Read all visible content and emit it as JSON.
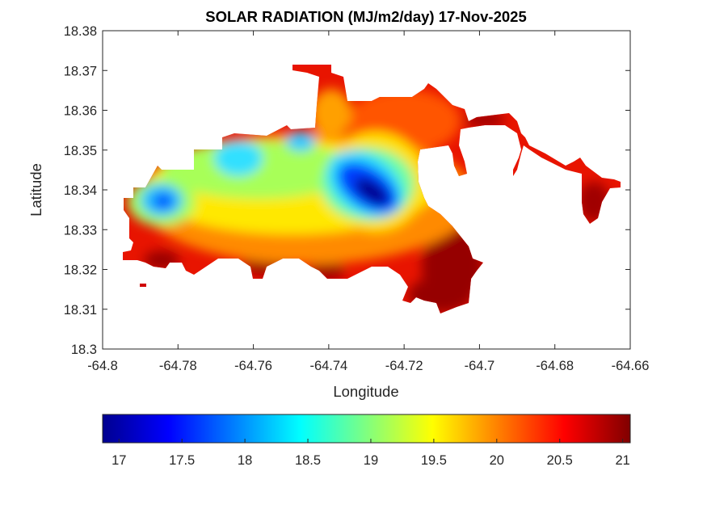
{
  "chart_data": {
    "type": "heatmap",
    "subtype": "filled-contour map",
    "title": "SOLAR RADIATION (MJ/m2/day) 17-Nov-2025",
    "xlabel": "Longitude",
    "ylabel": "Latitude",
    "xlim": [
      -64.8,
      -64.66
    ],
    "ylim": [
      18.3,
      18.38
    ],
    "xticks": [
      "-64.8",
      "-64.78",
      "-64.76",
      "-64.74",
      "-64.72",
      "-64.7",
      "-64.68",
      "-64.66"
    ],
    "yticks": [
      "18.3",
      "18.31",
      "18.32",
      "18.33",
      "18.34",
      "18.35",
      "18.36",
      "18.37",
      "18.38"
    ],
    "grid": false,
    "colormap": "jet",
    "colorbar": {
      "location": "bottom",
      "clim": [
        16.87,
        21.06
      ],
      "ticks": [
        "17",
        "17.5",
        "18",
        "18.5",
        "19",
        "19.5",
        "20",
        "20.5",
        "21"
      ]
    },
    "features": [
      {
        "type": "minimum",
        "lon": -64.729,
        "lat": 18.3395,
        "value": 16.9
      },
      {
        "type": "local-minimum",
        "lon": -64.784,
        "lat": 18.337,
        "value": 17.7
      },
      {
        "type": "local-minimum",
        "lon": -64.765,
        "lat": 18.347,
        "value": 18.4
      },
      {
        "type": "local-minimum",
        "lon": -64.751,
        "lat": 18.35,
        "value": 18.3
      },
      {
        "type": "maximum",
        "lon": -64.707,
        "lat": 18.325,
        "value": 21.0
      },
      {
        "type": "maximum",
        "lon": -64.759,
        "lat": 18.322,
        "value": 21.0
      }
    ]
  }
}
